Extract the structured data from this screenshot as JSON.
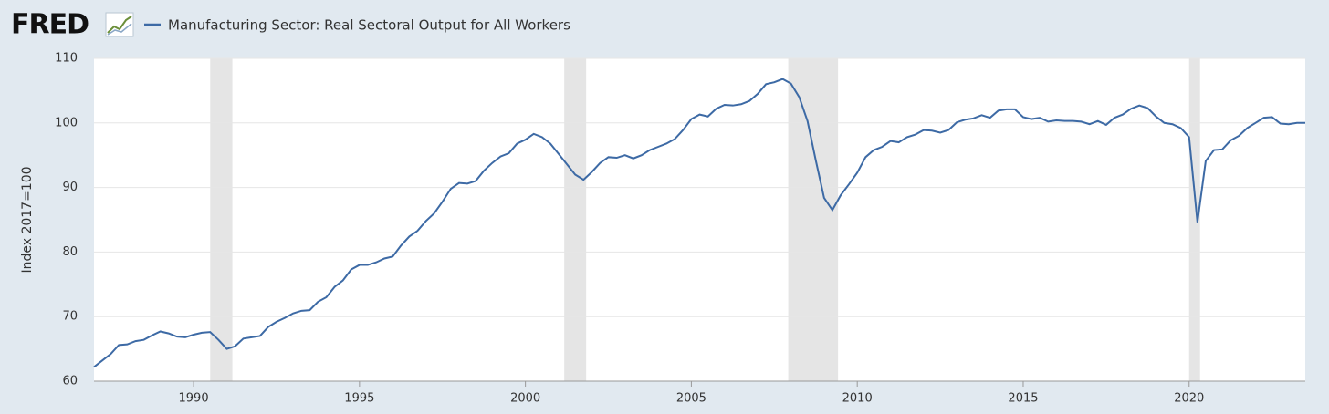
{
  "header": {
    "logo": "FRED"
  },
  "chart_data": {
    "type": "line",
    "ylabel": "Index 2017=100",
    "xlim": [
      1987,
      2023.5
    ],
    "ylim": [
      60,
      110
    ],
    "xticks": [
      1990,
      1995,
      2000,
      2005,
      2010,
      2015,
      2020
    ],
    "yticks": [
      60,
      70,
      80,
      90,
      100,
      110
    ],
    "grid": true,
    "recessions": [
      [
        1990.5,
        1991.17
      ],
      [
        2001.17,
        2001.83
      ],
      [
        2007.92,
        2009.42
      ],
      [
        2020.0,
        2020.33
      ]
    ],
    "x": [
      1987,
      1987.25,
      1987.5,
      1987.75,
      1988,
      1988.25,
      1988.5,
      1988.75,
      1989,
      1989.25,
      1989.5,
      1989.75,
      1990,
      1990.25,
      1990.5,
      1990.75,
      1991,
      1991.25,
      1991.5,
      1991.75,
      1992,
      1992.25,
      1992.5,
      1992.75,
      1993,
      1993.25,
      1993.5,
      1993.75,
      1994,
      1994.25,
      1994.5,
      1994.75,
      1995,
      1995.25,
      1995.5,
      1995.75,
      1996,
      1996.25,
      1996.5,
      1996.75,
      1997,
      1997.25,
      1997.5,
      1997.75,
      1998,
      1998.25,
      1998.5,
      1998.75,
      1999,
      1999.25,
      1999.5,
      1999.75,
      2000,
      2000.25,
      2000.5,
      2000.75,
      2001,
      2001.25,
      2001.5,
      2001.75,
      2002,
      2002.25,
      2002.5,
      2002.75,
      2003,
      2003.25,
      2003.5,
      2003.75,
      2004,
      2004.25,
      2004.5,
      2004.75,
      2005,
      2005.25,
      2005.5,
      2005.75,
      2006,
      2006.25,
      2006.5,
      2006.75,
      2007,
      2007.25,
      2007.5,
      2007.75,
      2008,
      2008.25,
      2008.5,
      2008.75,
      2009,
      2009.25,
      2009.5,
      2009.75,
      2010,
      2010.25,
      2010.5,
      2010.75,
      2011,
      2011.25,
      2011.5,
      2011.75,
      2012,
      2012.25,
      2012.5,
      2012.75,
      2013,
      2013.25,
      2013.5,
      2013.75,
      2014,
      2014.25,
      2014.5,
      2014.75,
      2015,
      2015.25,
      2015.5,
      2015.75,
      2016,
      2016.25,
      2016.5,
      2016.75,
      2017,
      2017.25,
      2017.5,
      2017.75,
      2018,
      2018.25,
      2018.5,
      2018.75,
      2019,
      2019.25,
      2019.5,
      2019.75,
      2020,
      2020.25,
      2020.5,
      2020.75,
      2021,
      2021.25,
      2021.5,
      2021.75,
      2022,
      2022.25,
      2022.5,
      2022.75,
      2023,
      2023.25,
      2023.5
    ],
    "series": [
      {
        "name": "Manufacturing Sector: Real Sectoral Output for All Workers",
        "color": "#3d6aa5",
        "values": [
          62.2,
          63.2,
          64.2,
          65.6,
          65.7,
          66.2,
          66.4,
          67.1,
          67.7,
          67.4,
          66.9,
          66.8,
          67.2,
          67.5,
          67.6,
          66.4,
          65.0,
          65.4,
          66.6,
          66.8,
          67.0,
          68.4,
          69.2,
          69.8,
          70.5,
          70.9,
          71.0,
          72.3,
          73.0,
          74.6,
          75.6,
          77.3,
          78.0,
          78.0,
          78.4,
          79.0,
          79.3,
          81.0,
          82.4,
          83.3,
          84.8,
          86.0,
          87.8,
          89.8,
          90.7,
          90.6,
          91.0,
          92.6,
          93.8,
          94.8,
          95.3,
          96.8,
          97.4,
          98.3,
          97.8,
          96.8,
          95.2,
          93.6,
          92.0,
          91.2,
          92.4,
          93.8,
          94.7,
          94.6,
          95.0,
          94.5,
          95.0,
          95.8,
          96.3,
          96.8,
          97.5,
          98.9,
          100.6,
          101.3,
          101.0,
          102.2,
          102.8,
          102.7,
          102.9,
          103.4,
          104.5,
          106.0,
          106.3,
          106.8,
          106.1,
          104.0,
          100.3,
          94.2,
          88.4,
          86.5,
          88.8,
          90.5,
          92.3,
          94.7,
          95.8,
          96.3,
          97.2,
          97.0,
          97.8,
          98.2,
          98.9,
          98.8,
          98.5,
          98.9,
          100.1,
          100.5,
          100.7,
          101.2,
          100.8,
          101.9,
          102.1,
          102.1,
          100.9,
          100.6,
          100.8,
          100.2,
          100.4,
          100.3,
          100.3,
          100.2,
          99.8,
          100.3,
          99.7,
          100.8,
          101.3,
          102.2,
          102.7,
          102.3,
          101.0,
          100.0,
          99.8,
          99.2,
          97.8,
          84.6,
          94.1,
          95.8,
          95.9,
          97.3,
          98.0,
          99.2,
          100.0,
          100.8,
          100.9,
          99.9,
          99.8,
          100.0,
          100.0
        ]
      }
    ]
  }
}
